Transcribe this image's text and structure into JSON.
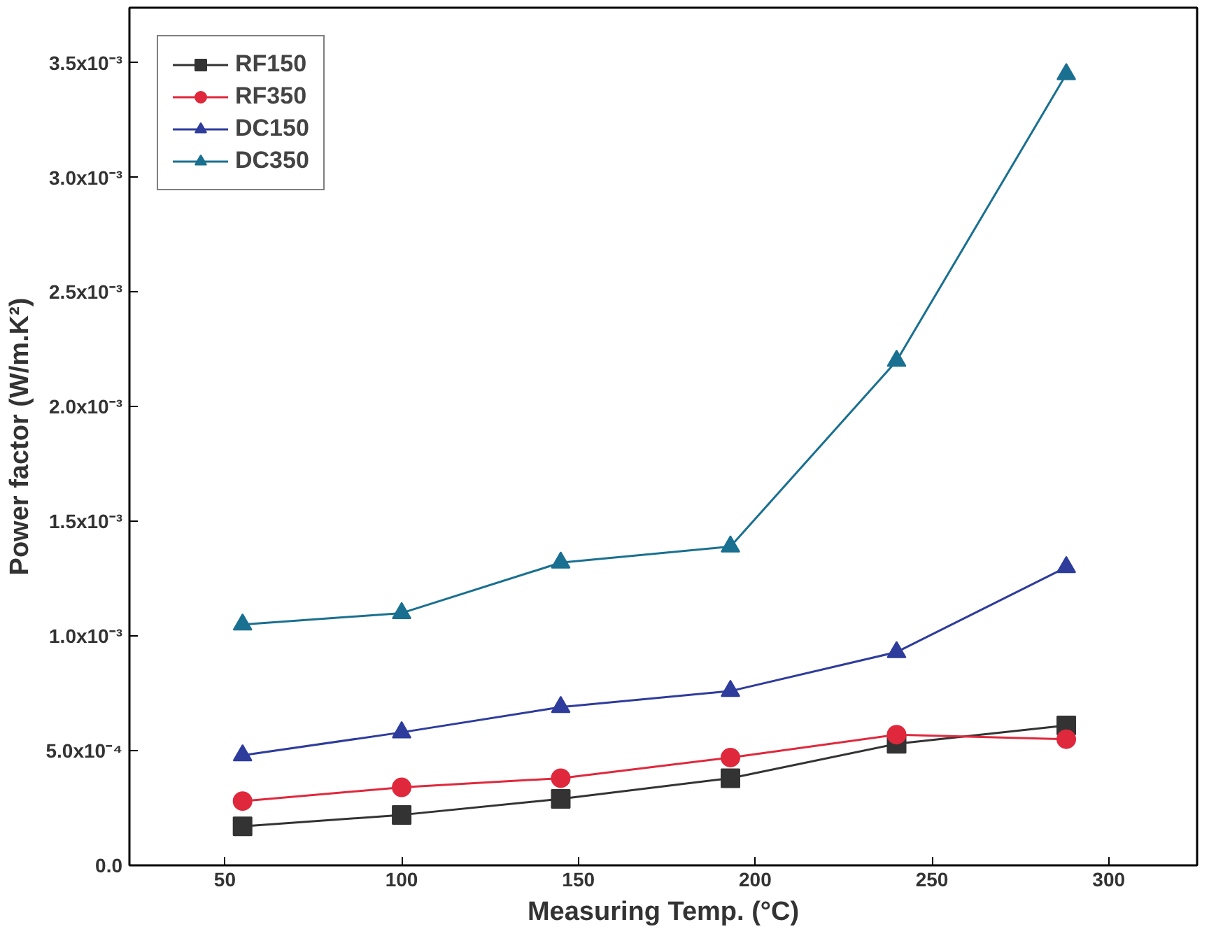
{
  "chart_data": {
    "type": "line",
    "xlabel": "Measuring Temp. (°C)",
    "ylabel": "Power factor (W/m.K²)",
    "xlim": [
      23,
      325
    ],
    "xticks": [
      50,
      100,
      150,
      200,
      250,
      300
    ],
    "ylim": [
      0,
      0.00374
    ],
    "yticks": [
      {
        "value": 0,
        "label": "0.0"
      },
      {
        "value": 0.0005,
        "label": "5.0x10⁻⁴"
      },
      {
        "value": 0.001,
        "label": "1.0x10⁻³"
      },
      {
        "value": 0.0015,
        "label": "1.5x10⁻³"
      },
      {
        "value": 0.002,
        "label": "2.0x10⁻³"
      },
      {
        "value": 0.0025,
        "label": "2.5x10⁻³"
      },
      {
        "value": 0.003,
        "label": "3.0x10⁻³"
      },
      {
        "value": 0.0035,
        "label": "3.5x10⁻³"
      }
    ],
    "x": [
      55,
      100,
      145,
      193,
      240,
      288
    ],
    "grid": false,
    "legend": "top left",
    "line_style": "solid",
    "series": [
      {
        "name": "RF150",
        "color": "#333333",
        "marker": "square",
        "values": [
          0.00017,
          0.00022,
          0.00029,
          0.00038,
          0.00053,
          0.00061
        ]
      },
      {
        "name": "RF350",
        "color": "#e0283c",
        "marker": "circle",
        "values": [
          0.00028,
          0.00034,
          0.00038,
          0.00047,
          0.00057,
          0.00055
        ]
      },
      {
        "name": "DC150",
        "color": "#2e3c9c",
        "marker": "triangle",
        "values": [
          0.00048,
          0.00058,
          0.00069,
          0.00076,
          0.00093,
          0.0013
        ]
      },
      {
        "name": "DC350",
        "color": "#1a7090",
        "marker": "triangle",
        "values": [
          0.00105,
          0.0011,
          0.00132,
          0.00139,
          0.0022,
          0.00345
        ]
      }
    ]
  }
}
